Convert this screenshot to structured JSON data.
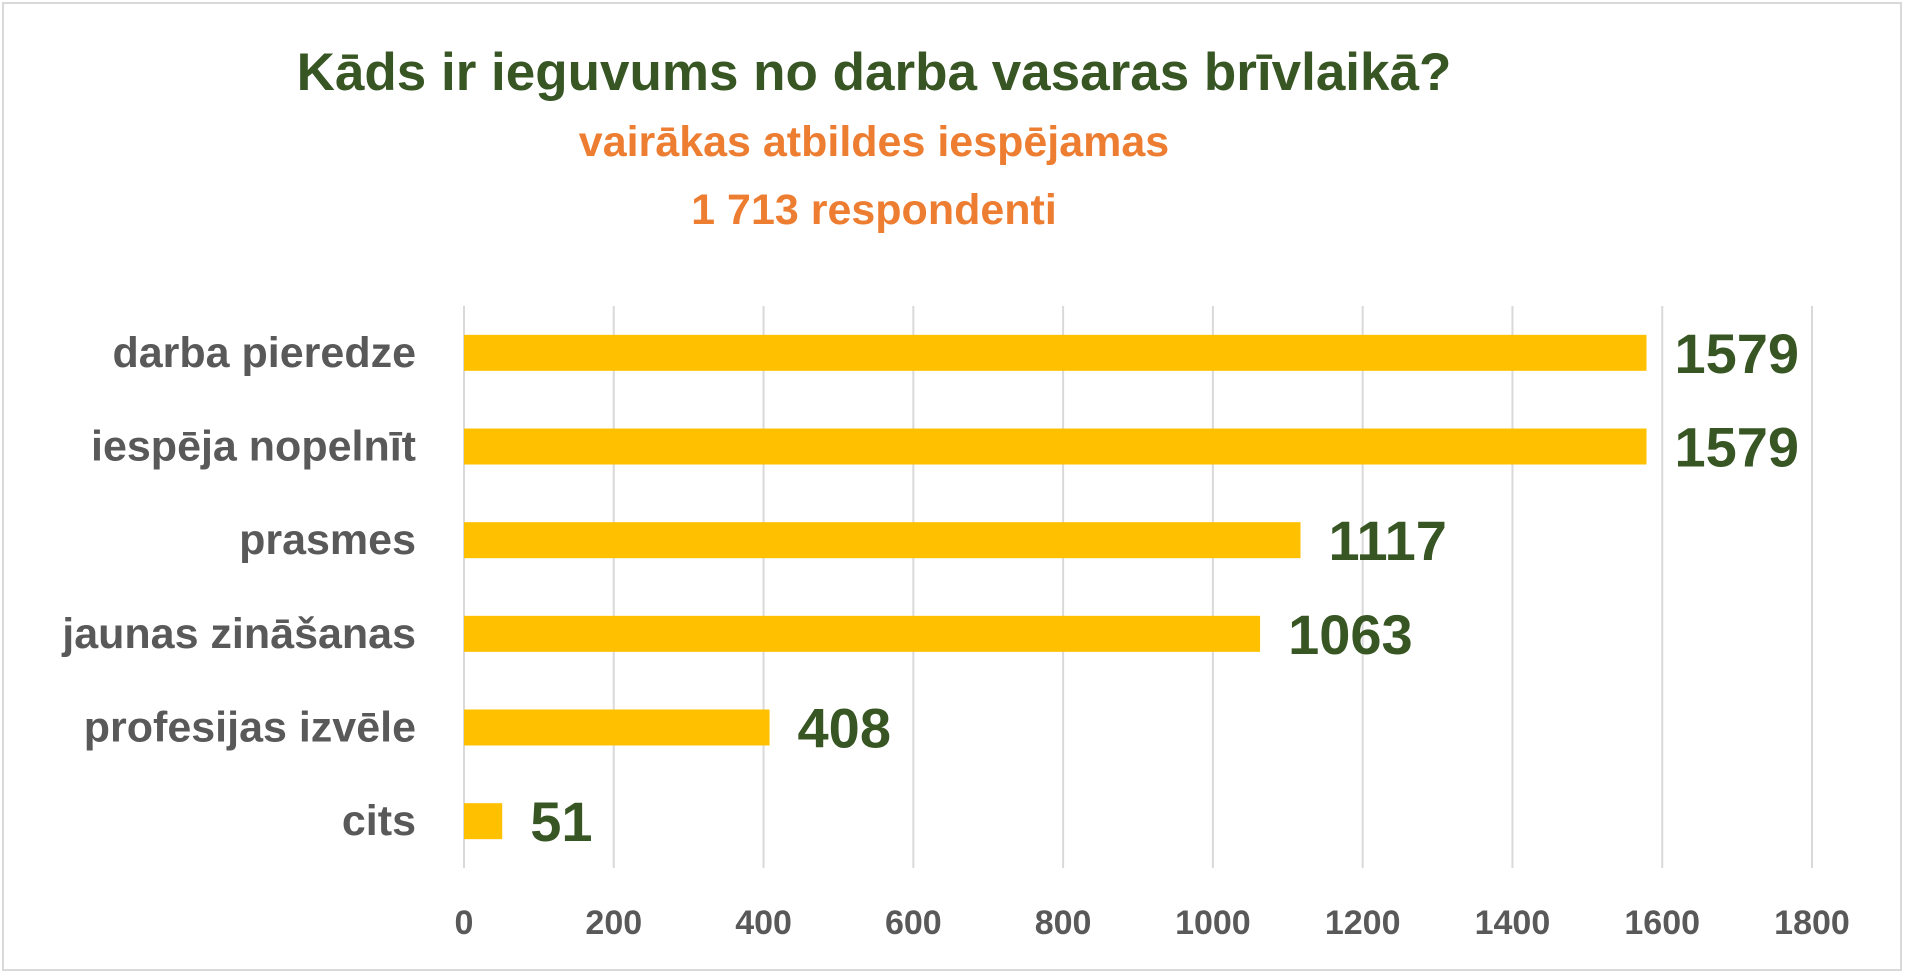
{
  "chart_data": {
    "type": "bar",
    "orientation": "horizontal",
    "title": "Kāds ir ieguvums no darba vasaras brīvlaikā?",
    "subtitles": [
      "vairākas atbildes iespējamas",
      "1 713 respondenti"
    ],
    "categories": [
      "darba pieredze",
      "iespēja nopelnīt",
      "prasmes",
      "jaunas zināšanas",
      "profesijas izvēle",
      "cits"
    ],
    "values": [
      1579,
      1579,
      1117,
      1063,
      408,
      51
    ],
    "data_labels": [
      "1579",
      "1579",
      "1117",
      "1063",
      "408",
      "51"
    ],
    "xlim": [
      0,
      1800
    ],
    "x_ticks": [
      "0",
      "200",
      "400",
      "600",
      "800",
      "1000",
      "1200",
      "1400",
      "1600",
      "1800"
    ],
    "grid": true,
    "legend": "none",
    "colors": {
      "bar": "#ffc000",
      "title": "#375623",
      "subtitle": "#ed7d31",
      "data_label": "#375623",
      "axis_text": "#595959",
      "grid": "#d9d9d9"
    }
  }
}
